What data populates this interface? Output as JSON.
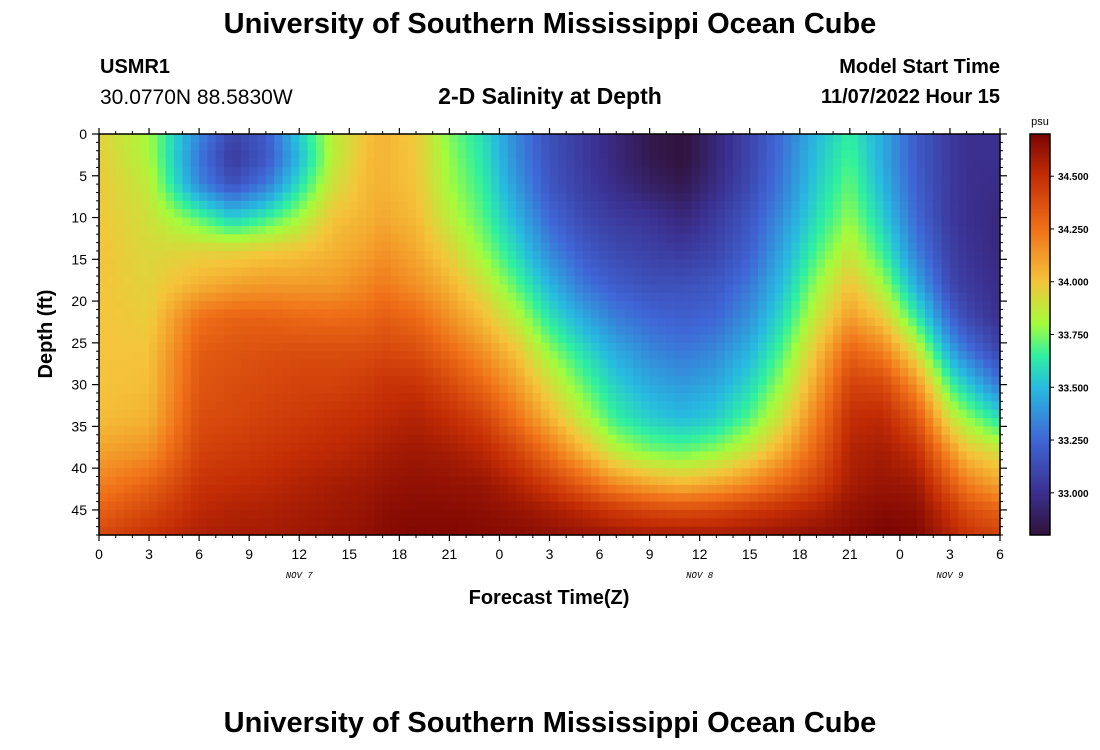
{
  "header": {
    "title": "University of Southern Mississippi Ocean Cube",
    "station_id": "USMR1",
    "coordinates": "30.0770N  88.5830W",
    "chart_title": "2-D Salinity at Depth",
    "model_start_label": "Model Start Time",
    "model_start_value": "11/07/2022 Hour 15"
  },
  "footer": {
    "title": "University of Southern Mississippi Ocean Cube"
  },
  "chart_data": {
    "type": "heatmap",
    "title": "2-D Salinity at Depth",
    "xlabel": "Forecast Time(Z)",
    "ylabel": "Depth (ft)",
    "x_ticks": [
      "0",
      "3",
      "6",
      "9",
      "12",
      "15",
      "18",
      "21",
      "0",
      "3",
      "6",
      "9",
      "12",
      "15",
      "18",
      "21",
      "0",
      "3",
      "6"
    ],
    "x_range_hours": [
      0,
      54
    ],
    "day_labels": [
      {
        "label": "NOV 7",
        "hour": 12
      },
      {
        "label": "NOV 8",
        "hour": 36
      },
      {
        "label": "NOV 9",
        "hour": 51
      }
    ],
    "y_ticks": [
      "0",
      "5",
      "10",
      "15",
      "20",
      "25",
      "30",
      "35",
      "40",
      "45"
    ],
    "ylim": [
      0,
      48
    ],
    "y_inverted": true,
    "colorbar": {
      "unit": "psu",
      "range": [
        32.8,
        34.7
      ],
      "ticks": [
        "33.000",
        "33.250",
        "33.500",
        "33.750",
        "34.000",
        "34.250",
        "34.500"
      ],
      "stops": [
        {
          "value": 32.8,
          "color": "#30123b"
        },
        {
          "value": 33.0,
          "color": "#3b2f8f"
        },
        {
          "value": 33.25,
          "color": "#3f66d6"
        },
        {
          "value": 33.5,
          "color": "#27bbe0"
        },
        {
          "value": 33.65,
          "color": "#2ff0a0"
        },
        {
          "value": 33.8,
          "color": "#a4fc3c"
        },
        {
          "value": 34.0,
          "color": "#f5c43a"
        },
        {
          "value": 34.25,
          "color": "#f07018"
        },
        {
          "value": 34.5,
          "color": "#c42d05"
        },
        {
          "value": 34.7,
          "color": "#7a0403"
        }
      ]
    },
    "salinity_profile": {
      "hours": [
        0,
        3,
        6,
        8,
        10,
        12,
        14,
        16,
        17,
        19,
        21,
        23,
        25,
        27,
        29,
        31,
        33,
        35,
        37,
        39,
        41,
        43,
        45,
        47,
        49,
        51,
        52,
        54
      ],
      "depths_ft": [
        0,
        3,
        6,
        10,
        14,
        18,
        22,
        26,
        30,
        34,
        38,
        42,
        45,
        48
      ],
      "values": [
        [
          33.95,
          33.97,
          33.98,
          33.99,
          34.0,
          34.0,
          34.0,
          34.0,
          34.0,
          34.02,
          34.1,
          34.2,
          34.3,
          34.4
        ],
        [
          33.8,
          33.82,
          33.86,
          33.9,
          33.93,
          33.95,
          33.97,
          34.0,
          34.02,
          34.05,
          34.15,
          34.3,
          34.4,
          34.48
        ],
        [
          33.35,
          33.3,
          33.35,
          33.7,
          33.95,
          34.05,
          34.25,
          34.32,
          34.35,
          34.38,
          34.42,
          34.48,
          34.52,
          34.56
        ],
        [
          33.1,
          33.05,
          33.15,
          33.55,
          33.95,
          34.1,
          34.3,
          34.35,
          34.38,
          34.4,
          34.45,
          34.5,
          34.55,
          34.58
        ],
        [
          33.2,
          33.18,
          33.3,
          33.65,
          33.98,
          34.12,
          34.3,
          34.37,
          34.4,
          34.43,
          34.47,
          34.52,
          34.56,
          34.58
        ],
        [
          33.55,
          33.5,
          33.6,
          33.8,
          34.0,
          34.12,
          34.28,
          34.38,
          34.42,
          34.45,
          34.5,
          34.55,
          34.58,
          34.6
        ],
        [
          33.85,
          33.85,
          33.9,
          34.0,
          34.05,
          34.12,
          34.27,
          34.38,
          34.42,
          34.48,
          34.52,
          34.58,
          34.6,
          34.62
        ],
        [
          34.0,
          34.02,
          34.03,
          34.05,
          34.1,
          34.18,
          34.28,
          34.38,
          34.45,
          34.5,
          34.55,
          34.6,
          34.62,
          34.64
        ],
        [
          34.05,
          34.05,
          34.05,
          34.08,
          34.15,
          34.22,
          34.32,
          34.4,
          34.48,
          34.52,
          34.58,
          34.62,
          34.65,
          34.66
        ],
        [
          33.98,
          33.99,
          34.0,
          34.03,
          34.08,
          34.15,
          34.28,
          34.38,
          34.48,
          34.55,
          34.6,
          34.64,
          34.66,
          34.68
        ],
        [
          33.75,
          33.78,
          33.8,
          33.85,
          33.95,
          34.05,
          34.15,
          34.28,
          34.4,
          34.5,
          34.58,
          34.63,
          34.66,
          34.68
        ],
        [
          33.6,
          33.62,
          33.65,
          33.7,
          33.78,
          33.9,
          34.02,
          34.15,
          34.28,
          34.42,
          34.53,
          34.62,
          34.65,
          34.67
        ],
        [
          33.35,
          33.36,
          33.4,
          33.48,
          33.58,
          33.7,
          33.85,
          34.0,
          34.12,
          34.25,
          34.42,
          34.55,
          34.62,
          34.66
        ],
        [
          33.15,
          33.16,
          33.18,
          33.25,
          33.35,
          33.48,
          33.62,
          33.78,
          33.92,
          34.05,
          34.25,
          34.45,
          34.58,
          34.64
        ],
        [
          33.05,
          33.05,
          33.07,
          33.12,
          33.2,
          33.3,
          33.45,
          33.6,
          33.72,
          33.85,
          34.05,
          34.32,
          34.52,
          34.62
        ],
        [
          32.95,
          32.95,
          32.98,
          33.05,
          33.12,
          33.2,
          33.32,
          33.45,
          33.55,
          33.65,
          33.85,
          34.18,
          34.45,
          34.6
        ],
        [
          32.85,
          32.85,
          32.9,
          33.02,
          33.08,
          33.15,
          33.25,
          33.35,
          33.45,
          33.55,
          33.75,
          34.1,
          34.4,
          34.58
        ],
        [
          32.8,
          32.8,
          32.85,
          32.95,
          33.05,
          33.15,
          33.22,
          33.3,
          33.4,
          33.5,
          33.72,
          34.05,
          34.38,
          34.58
        ],
        [
          32.95,
          32.95,
          32.98,
          33.05,
          33.1,
          33.18,
          33.25,
          33.35,
          33.45,
          33.55,
          33.78,
          34.1,
          34.4,
          34.58
        ],
        [
          33.1,
          33.1,
          33.12,
          33.18,
          33.22,
          33.3,
          33.38,
          33.48,
          33.58,
          33.7,
          33.9,
          34.18,
          34.45,
          34.6
        ],
        [
          33.28,
          33.3,
          33.32,
          33.38,
          33.45,
          33.52,
          33.6,
          33.7,
          33.8,
          33.92,
          34.08,
          34.3,
          34.5,
          34.62
        ],
        [
          33.5,
          33.52,
          33.55,
          33.6,
          33.68,
          33.78,
          33.88,
          34.0,
          34.1,
          34.2,
          34.3,
          34.42,
          34.55,
          34.64
        ],
        [
          33.65,
          33.68,
          33.72,
          33.78,
          33.88,
          34.0,
          34.12,
          34.3,
          34.42,
          34.5,
          34.55,
          34.58,
          34.63,
          34.66
        ],
        [
          33.45,
          33.45,
          33.48,
          33.55,
          33.65,
          33.8,
          33.98,
          34.2,
          34.4,
          34.52,
          34.58,
          34.62,
          34.66,
          34.7
        ],
        [
          33.2,
          33.2,
          33.22,
          33.25,
          33.32,
          33.45,
          33.65,
          33.9,
          34.15,
          34.35,
          34.5,
          34.6,
          34.65,
          34.68
        ],
        [
          33.05,
          33.05,
          33.05,
          33.05,
          33.08,
          33.12,
          33.25,
          33.45,
          33.68,
          33.9,
          34.15,
          34.35,
          34.48,
          34.55
        ],
        [
          33.0,
          33.0,
          33.0,
          33.0,
          33.02,
          33.05,
          33.12,
          33.3,
          33.55,
          33.78,
          34.0,
          34.22,
          34.38,
          34.48
        ],
        [
          33.0,
          33.0,
          32.98,
          32.96,
          32.96,
          32.98,
          33.0,
          33.1,
          33.3,
          33.6,
          33.9,
          34.1,
          34.3,
          34.42
        ]
      ]
    }
  }
}
